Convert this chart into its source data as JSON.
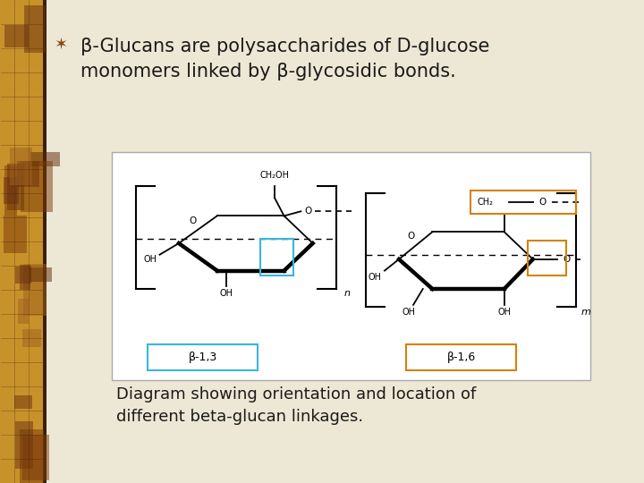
{
  "background_color": "#ede8d5",
  "left_bar_colors": [
    "#c8922a",
    "#7a4a1a",
    "#b87820",
    "#5a3010"
  ],
  "title_text": "β-Glucans are polysaccharides of D-glucose\nmonomers linked by β-glycosidic bonds.",
  "caption_text": "Diagram showing orientation and location of\ndifferent beta-glucan linkages.",
  "title_fontsize": 15,
  "caption_fontsize": 13,
  "bullet_color": "#8B4513",
  "diagram_bg": "#ffffff",
  "diagram_border": "#aaaaaa",
  "beta13_box_color": "#3ab5e0",
  "beta16_box_color": "#d4820a",
  "beta13_label": "β-1,3",
  "beta16_label": "β-1,6"
}
